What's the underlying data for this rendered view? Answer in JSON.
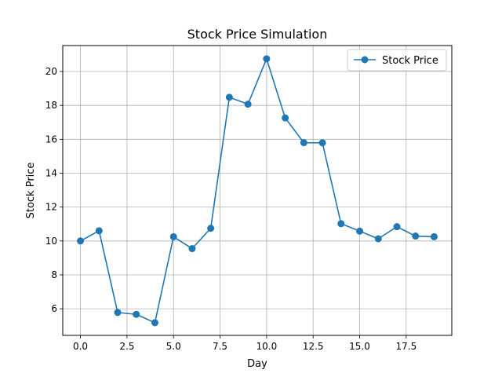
{
  "chart_data": {
    "type": "line",
    "title": "Stock Price Simulation",
    "xlabel": "Day",
    "ylabel": "Stock Price",
    "xlim": [
      -0.95,
      19.95
    ],
    "ylim": [
      4.43,
      21.53
    ],
    "xticks": [
      0.0,
      2.5,
      5.0,
      7.5,
      10.0,
      12.5,
      15.0,
      17.5
    ],
    "xtick_labels": [
      "0.0",
      "2.5",
      "5.0",
      "7.5",
      "10.0",
      "12.5",
      "15.0",
      "17.5"
    ],
    "yticks": [
      6,
      8,
      10,
      12,
      14,
      16,
      18,
      20
    ],
    "ytick_labels": [
      "6",
      "8",
      "10",
      "12",
      "14",
      "16",
      "18",
      "20"
    ],
    "grid": true,
    "legend_position": "top-right",
    "color": "#1f77b4",
    "series": [
      {
        "name": "Stock Price",
        "x": [
          0,
          1,
          2,
          3,
          4,
          5,
          6,
          7,
          8,
          9,
          10,
          11,
          12,
          13,
          14,
          15,
          16,
          17,
          18,
          19
        ],
        "y": [
          10.0,
          10.6,
          5.78,
          5.67,
          5.18,
          10.25,
          9.55,
          10.75,
          18.48,
          18.07,
          20.75,
          17.26,
          15.8,
          15.79,
          11.02,
          10.58,
          10.13,
          10.84,
          10.29,
          10.25
        ]
      }
    ]
  }
}
